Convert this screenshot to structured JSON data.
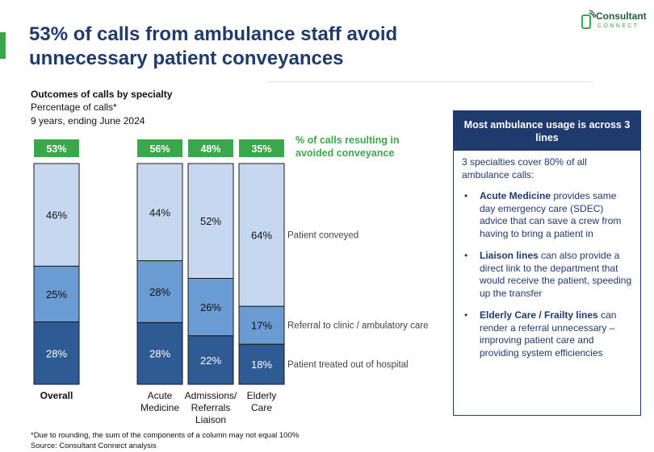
{
  "header": {
    "title": "53% of calls from ambulance staff avoid unnecessary patient conveyances",
    "logo_top": "Consultant",
    "logo_bottom": "CONNECT",
    "accent_color": "#3aa74a",
    "title_color": "#1f3a6d"
  },
  "subtitle": {
    "line1": "Outcomes of calls by specialty",
    "line2": "Percentage of calls*",
    "line3": "9 years, ending June 2024"
  },
  "chart_data": {
    "type": "bar",
    "stacked": true,
    "categories": [
      "Overall",
      "Acute Medicine",
      "Admissions/ Referrals Liaison",
      "Elderly Care"
    ],
    "series": [
      {
        "name": "Patient treated out of hospital",
        "values": [
          28,
          28,
          22,
          18
        ],
        "color": "#2e5b94"
      },
      {
        "name": "Referral to clinic / ambulatory care",
        "values": [
          25,
          28,
          26,
          17
        ],
        "color": "#6a9bd2"
      },
      {
        "name": "Patient conveyed",
        "values": [
          46,
          44,
          52,
          64
        ],
        "color": "#c6d8ef"
      }
    ],
    "avoided_label": "% of calls resulting in avoided conveyance",
    "avoided_values": [
      "53%",
      "56%",
      "48%",
      "35%"
    ],
    "avoided_color": "#3aa74a",
    "data_label_suffix": "%",
    "legend_placement": "right"
  },
  "footnotes": {
    "line1": "*Due to rounding, the sum of the components of a column may not equal 100%",
    "line2": "Source: Consultant Connect analysis"
  },
  "panel": {
    "heading": "Most ambulance usage is across 3 lines",
    "intro": "3 specialties cover 80% of all ambulance calls:",
    "bullets": [
      {
        "bold": "Acute Medicine",
        "text": " provides same day emergency care (SDEC) advice that can save a crew from having to bring a patient in"
      },
      {
        "bold": "Liaison lines",
        "text": " can also provide a direct link to the department that would receive the patient, speeding up the transfer"
      },
      {
        "bold": "Elderly Care / Frailty lines",
        "text": " can render a referral unnecessary – improving patient care and providing system efficiencies"
      }
    ],
    "bullet_char": "•"
  }
}
